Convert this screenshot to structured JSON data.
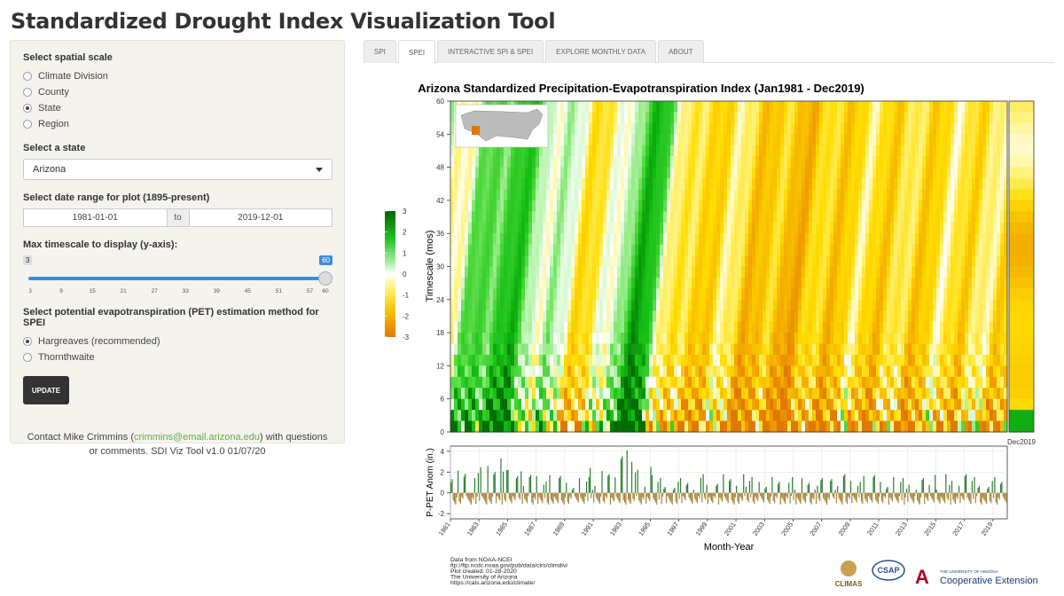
{
  "app": {
    "title": "Standardized Drought Index Visualization Tool"
  },
  "sidebar": {
    "spatial_label": "Select spatial scale",
    "spatial_options": [
      "Climate Division",
      "County",
      "State",
      "Region"
    ],
    "spatial_selected": "State",
    "state_label": "Select a state",
    "state_value": "Arizona",
    "date_label": "Select date range for plot (1895-present)",
    "date_start": "1981-01-01",
    "date_sep": "to",
    "date_end": "2019-12-01",
    "timescale_label": "Max timescale to display (y-axis):",
    "slider_min_badge": "3",
    "slider_max_badge": "60",
    "slider_ticks": [
      "3",
      "9",
      "15",
      "21",
      "27",
      "33",
      "39",
      "45",
      "51",
      "57",
      "60"
    ],
    "pet_label": "Select potential evapotranspiration (PET) estimation method for SPEI",
    "pet_options": [
      "Hargreaves (recommended)",
      "Thornthwaite"
    ],
    "pet_selected": "Hargreaves (recommended)",
    "update_label": "UPDATE",
    "contact_pre": "Contact Mike Crimmins (",
    "contact_email": "crimmins@email.arizona.edu",
    "contact_post": ") with questions or comments. SDI Viz Tool v1.0 01/07/20"
  },
  "tabs": [
    {
      "label": "SPI",
      "active": false
    },
    {
      "label": "SPEI",
      "active": true
    },
    {
      "label": "INTERACTIVE SPI & SPEI",
      "active": false
    },
    {
      "label": "EXPLORE MONTHLY DATA",
      "active": false
    },
    {
      "label": "ABOUT",
      "active": false
    }
  ],
  "chart_data": [
    {
      "type": "heatmap",
      "title": "Arizona Standardized Precipitation-Evapotranspiration Index (Jan1981 - Dec2019)",
      "ylabel": "Timescale (mos)",
      "ylim": [
        0,
        60
      ],
      "yticks": [
        "0",
        "6",
        "12",
        "18",
        "24",
        "30",
        "36",
        "42",
        "48",
        "54",
        "60"
      ],
      "colorbar_ticks": [
        "3",
        "2",
        "1",
        "0",
        "-1",
        "-2",
        "-3"
      ],
      "colorbar_range": [
        -3,
        3
      ],
      "colors": {
        "wet": "#00a000",
        "neutral": "#ffffff",
        "dry": "#e08000"
      },
      "side_panel_label": "Dec2019",
      "grid": false
    },
    {
      "type": "bar",
      "ylabel": "P-PET Anom (in.)",
      "xlabel": "Month-Year",
      "ylim": [
        -2.5,
        4.5
      ],
      "yticks": [
        "-2",
        "0",
        "2",
        "4"
      ],
      "xticks": [
        "1981",
        "1983",
        "1985",
        "1987",
        "1989",
        "1991",
        "1993",
        "1995",
        "1997",
        "1999",
        "2001",
        "2003",
        "2005",
        "2007",
        "2009",
        "2011",
        "2013",
        "2015",
        "2017",
        "2019"
      ],
      "colors": {
        "positive": "#2e7d32",
        "negative": "#a8863a"
      },
      "grid": true
    }
  ],
  "footer": {
    "credits": [
      "Data from NOAA-NCEI",
      "ftp://ftp.ncdc.noaa.gov/pub/data/cirs/climdiv/",
      "Plot created: 01-28-2020",
      "The University of Arizona",
      "https://cals.arizona.edu/climate/"
    ],
    "logo_climas": "CLIMAS",
    "logo_csap": "CSAP",
    "logo_ua_small": "THE UNIVERSITY OF ARIZONA",
    "logo_ext": "Cooperative Extension"
  }
}
